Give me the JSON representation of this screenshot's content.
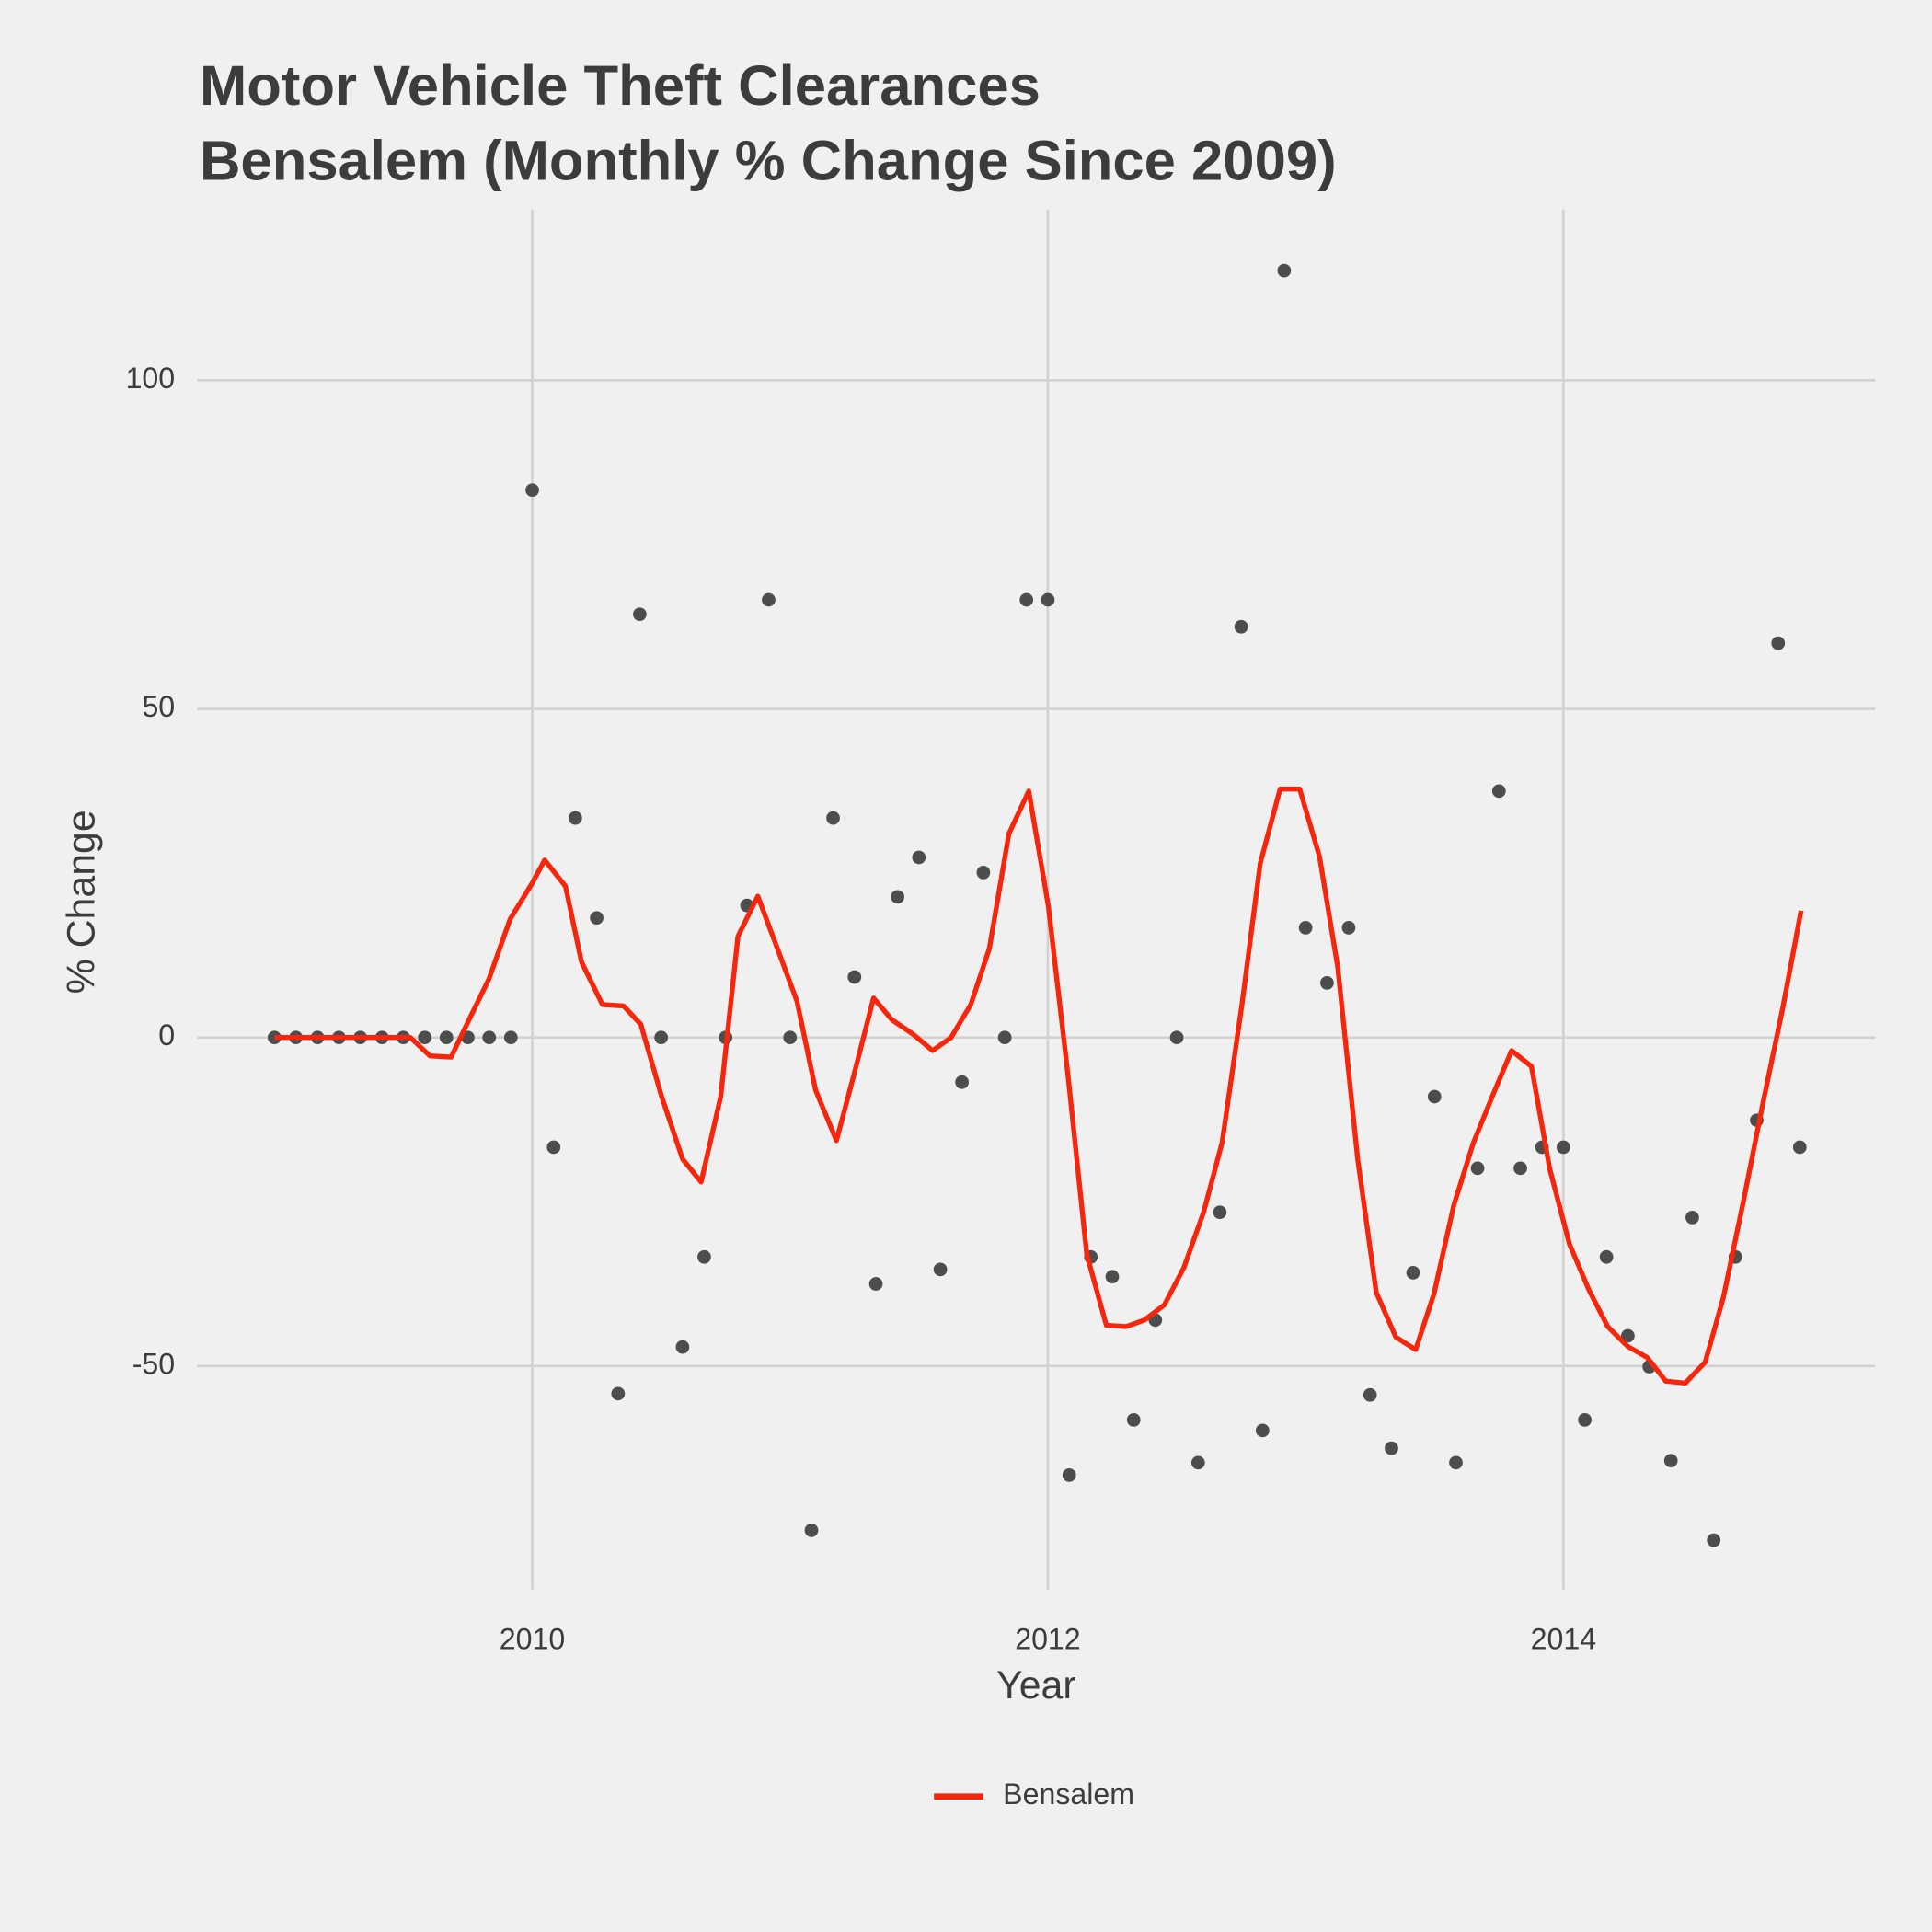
{
  "chart_data": {
    "type": "line",
    "title": "Motor Vehicle Theft Clearances",
    "subtitle": "Bensalem (Monthly % Change Since 2009)",
    "x_label": "Year",
    "y_label": "% Change",
    "xlim": [
      2008.7,
      2015.21
    ],
    "ylim": [
      -84,
      126
    ],
    "xticks": [
      2010,
      2012,
      2014
    ],
    "yticks": [
      -50,
      0,
      50,
      100
    ],
    "grid": true,
    "legend": "bottom",
    "series": [
      {
        "type": "scatter",
        "color": "#4d4d4d",
        "x": [
          2009,
          2009.083,
          2009.167,
          2009.25,
          2009.333,
          2009.417,
          2009.5,
          2009.583,
          2009.667,
          2009.75,
          2009.833,
          2009.917,
          2010,
          2010.083,
          2010.167,
          2010.25,
          2010.333,
          2010.417,
          2010.5,
          2010.583,
          2010.667,
          2010.75,
          2010.833,
          2010.917,
          2011,
          2011.083,
          2011.167,
          2011.25,
          2011.333,
          2011.417,
          2011.5,
          2011.583,
          2011.667,
          2011.75,
          2011.833,
          2011.917,
          2012,
          2012.083,
          2012.167,
          2012.25,
          2012.333,
          2012.417,
          2012.5,
          2012.583,
          2012.667,
          2012.75,
          2012.833,
          2012.917,
          2013,
          2013.083,
          2013.167,
          2013.25,
          2013.333,
          2013.417,
          2013.5,
          2013.583,
          2013.667,
          2013.75,
          2013.833,
          2013.917,
          2014,
          2014.083,
          2014.167,
          2014.25,
          2014.333,
          2014.417,
          2014.5,
          2014.583,
          2014.667,
          2014.75,
          2014.833,
          2014.917
        ],
        "values": [
          0,
          0,
          0,
          0,
          0,
          0,
          0,
          0,
          0,
          0,
          0,
          0,
          83.3,
          -16.7,
          33.4,
          18.2,
          -54.2,
          64.4,
          0,
          -47.1,
          -33.4,
          0,
          20.1,
          66.6,
          0,
          -75,
          33.4,
          9.2,
          -37.5,
          21.4,
          27.4,
          -35.3,
          -6.8,
          25.1,
          0,
          66.6,
          66.6,
          -66.6,
          -33.4,
          -36.4,
          -58.2,
          -43,
          0,
          -64.7,
          -26.6,
          62.5,
          -59.8,
          116.7,
          16.7,
          8.3,
          16.7,
          -54.4,
          -62.5,
          -35.8,
          -9,
          -64.7,
          -19.9,
          37.5,
          -19.9,
          -16.7,
          -16.7,
          -58.2,
          -33.4,
          -45.4,
          -50.1,
          -64.4,
          -27.4,
          -76.5,
          -33.4,
          -12.6,
          60,
          -16.7
        ]
      },
      {
        "type": "line",
        "name": "Bensalem",
        "color": "#f5260c",
        "x": [
          2009,
          2009.078,
          2009.149,
          2009.226,
          2009.302,
          2009.374,
          2009.45,
          2009.527,
          2009.603,
          2009.685,
          2009.751,
          2009.833,
          2009.914,
          2010,
          2010.048,
          2010.129,
          2010.191,
          2010.272,
          2010.354,
          2010.421,
          2010.502,
          2010.583,
          2010.655,
          2010.731,
          2010.798,
          2010.875,
          2010.956,
          2011.027,
          2011.099,
          2011.18,
          2011.247,
          2011.324,
          2011.395,
          2011.477,
          2011.553,
          2011.625,
          2011.701,
          2011.773,
          2011.849,
          2011.926,
          2012.002,
          2012.079,
          2012.151,
          2012.227,
          2012.303,
          2012.375,
          2012.452,
          2012.528,
          2012.605,
          2012.676,
          2012.753,
          2012.824,
          2012.901,
          2012.977,
          2013.054,
          2013.125,
          2013.202,
          2013.274,
          2013.35,
          2013.427,
          2013.498,
          2013.575,
          2013.651,
          2013.728,
          2013.799,
          2013.876,
          2013.947,
          2014.024,
          2014.1,
          2014.172,
          2014.249,
          2014.325,
          2014.397,
          2014.473,
          2014.55,
          2014.621,
          2014.698,
          2014.774,
          2014.851,
          2014.922
        ],
        "values": [
          0,
          0,
          0,
          0,
          0,
          0,
          0,
          0,
          -2.8,
          -3,
          2.4,
          9,
          18,
          23.5,
          27,
          23,
          11.5,
          5,
          4.8,
          2,
          -9,
          -18.5,
          -22,
          -9,
          15.4,
          21.5,
          13,
          5.5,
          -8,
          -15.7,
          -5.8,
          6,
          2.7,
          0.5,
          -2,
          0,
          5,
          13.5,
          31,
          37.5,
          20,
          -6,
          -33,
          -43.8,
          -44,
          -43,
          -40.7,
          -35,
          -26.5,
          -16,
          5,
          26.5,
          37.8,
          37.8,
          27.5,
          10.6,
          -18.5,
          -38.8,
          -45.6,
          -47.5,
          -39,
          -25.5,
          -16,
          -8.6,
          -2,
          -4.4,
          -20,
          -31.5,
          -38.5,
          -44,
          -47,
          -48.7,
          -52.3,
          -52.6,
          -49.4,
          -39.5,
          -25,
          -10,
          4.5,
          19.3
        ]
      }
    ]
  }
}
